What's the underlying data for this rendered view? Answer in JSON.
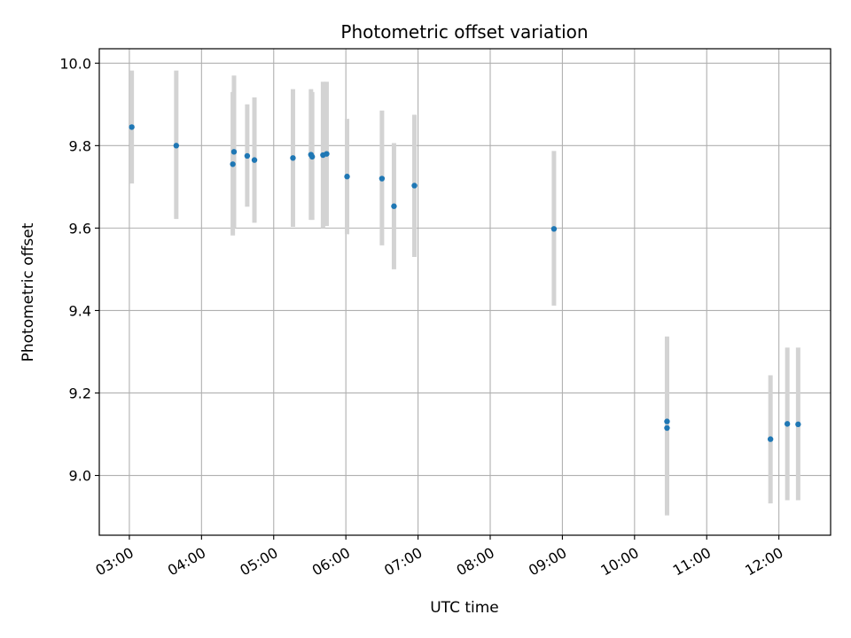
{
  "chart_data": {
    "type": "scatter",
    "title": "Photometric offset variation",
    "xlabel": "UTC time",
    "ylabel": "Photometric offset",
    "x_unit": "UTC time of day (HH:MM)",
    "xlim": [
      "02:35",
      "12:43"
    ],
    "ylim": [
      8.855,
      10.035
    ],
    "x_ticks": [
      "03:00",
      "04:00",
      "05:00",
      "06:00",
      "07:00",
      "08:00",
      "09:00",
      "10:00",
      "11:00",
      "12:00"
    ],
    "y_ticks": [
      "9.0",
      "9.2",
      "9.4",
      "9.6",
      "9.8",
      "10.0"
    ],
    "grid": true,
    "legend": "none",
    "point_color": "#1f77b4",
    "errorbar_color": "#d3d3d3",
    "series": [
      {
        "points": [
          {
            "x": "03:02",
            "y": 9.845,
            "err_low": 9.708,
            "err_high": 9.982
          },
          {
            "x": "03:39",
            "y": 9.8,
            "err_low": 9.622,
            "err_high": 9.982
          },
          {
            "x": "04:26",
            "y": 9.755,
            "err_low": 9.582,
            "err_high": 9.93
          },
          {
            "x": "04:27",
            "y": 9.785,
            "err_low": 9.6,
            "err_high": 9.97
          },
          {
            "x": "04:38",
            "y": 9.775,
            "err_low": 9.652,
            "err_high": 9.9
          },
          {
            "x": "04:44",
            "y": 9.765,
            "err_low": 9.613,
            "err_high": 9.917
          },
          {
            "x": "05:16",
            "y": 9.77,
            "err_low": 9.603,
            "err_high": 9.937
          },
          {
            "x": "05:31",
            "y": 9.778,
            "err_low": 9.62,
            "err_high": 9.937
          },
          {
            "x": "05:32",
            "y": 9.773,
            "err_low": 9.62,
            "err_high": 9.93
          },
          {
            "x": "05:41",
            "y": 9.777,
            "err_low": 9.6,
            "err_high": 9.955
          },
          {
            "x": "05:44",
            "y": 9.78,
            "err_low": 9.605,
            "err_high": 9.955
          },
          {
            "x": "06:01",
            "y": 9.725,
            "err_low": 9.585,
            "err_high": 9.865
          },
          {
            "x": "06:30",
            "y": 9.72,
            "err_low": 9.558,
            "err_high": 9.885
          },
          {
            "x": "06:40",
            "y": 9.653,
            "err_low": 9.5,
            "err_high": 9.806
          },
          {
            "x": "06:57",
            "y": 9.703,
            "err_low": 9.53,
            "err_high": 9.875
          },
          {
            "x": "08:53",
            "y": 9.598,
            "err_low": 9.412,
            "err_high": 9.787
          },
          {
            "x": "10:27",
            "y": 9.115,
            "err_low": 8.903,
            "err_high": 9.327
          },
          {
            "x": "10:27",
            "y": 9.131,
            "err_low": 8.925,
            "err_high": 9.337
          },
          {
            "x": "11:53",
            "y": 9.088,
            "err_low": 8.932,
            "err_high": 9.243
          },
          {
            "x": "12:07",
            "y": 9.125,
            "err_low": 8.94,
            "err_high": 9.31
          },
          {
            "x": "12:16",
            "y": 9.124,
            "err_low": 8.94,
            "err_high": 9.31
          }
        ]
      }
    ]
  }
}
